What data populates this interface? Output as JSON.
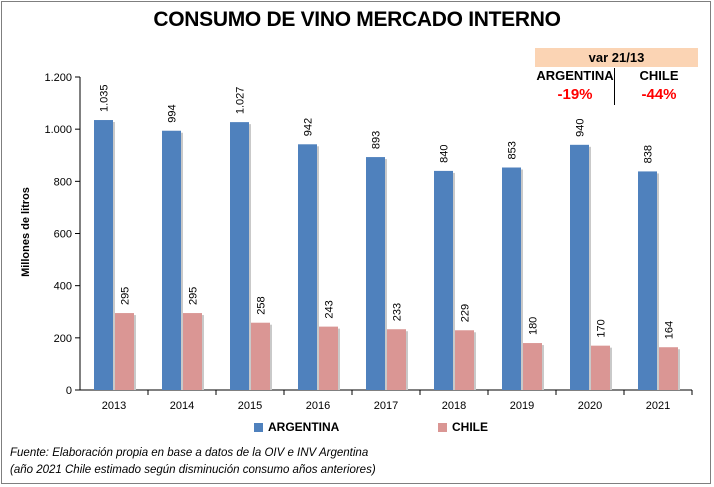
{
  "chart_data": {
    "type": "bar",
    "title": "CONSUMO DE VINO MERCADO INTERNO",
    "ylabel": "Millones de litros",
    "xlabel": "",
    "categories": [
      "2013",
      "2014",
      "2015",
      "2016",
      "2017",
      "2018",
      "2019",
      "2020",
      "2021"
    ],
    "series": [
      {
        "name": "ARGENTINA",
        "color": "#4f81bd",
        "values": [
          1035,
          994,
          1027,
          942,
          893,
          840,
          853,
          940,
          838
        ],
        "labels": [
          "1.035",
          "994",
          "1.027",
          "942",
          "893",
          "840",
          "853",
          "940",
          "838"
        ]
      },
      {
        "name": "CHILE",
        "color": "#da9694",
        "values": [
          295,
          295,
          258,
          243,
          233,
          229,
          180,
          170,
          164
        ],
        "labels": [
          "295",
          "295",
          "258",
          "243",
          "233",
          "229",
          "180",
          "170",
          "164"
        ]
      }
    ],
    "ylim": [
      0,
      1200
    ],
    "yticks": [
      0,
      200,
      400,
      600,
      800,
      1000,
      1200
    ],
    "ytick_labels": [
      "0",
      "200",
      "400",
      "600",
      "800",
      "1.000",
      "1.200"
    ],
    "grid": false,
    "legend_position": "bottom"
  },
  "variation": {
    "header": "var 21/13",
    "argentina_label": "ARGENTINA",
    "argentina_value": "-19%",
    "chile_label": "CHILE",
    "chile_value": "-44%"
  },
  "source": {
    "line1": "Fuente: Elaboración propia en base a datos de la OIV e INV Argentina",
    "line2": "(año 2021 Chile estimado según disminución consumo años anteriores)"
  }
}
